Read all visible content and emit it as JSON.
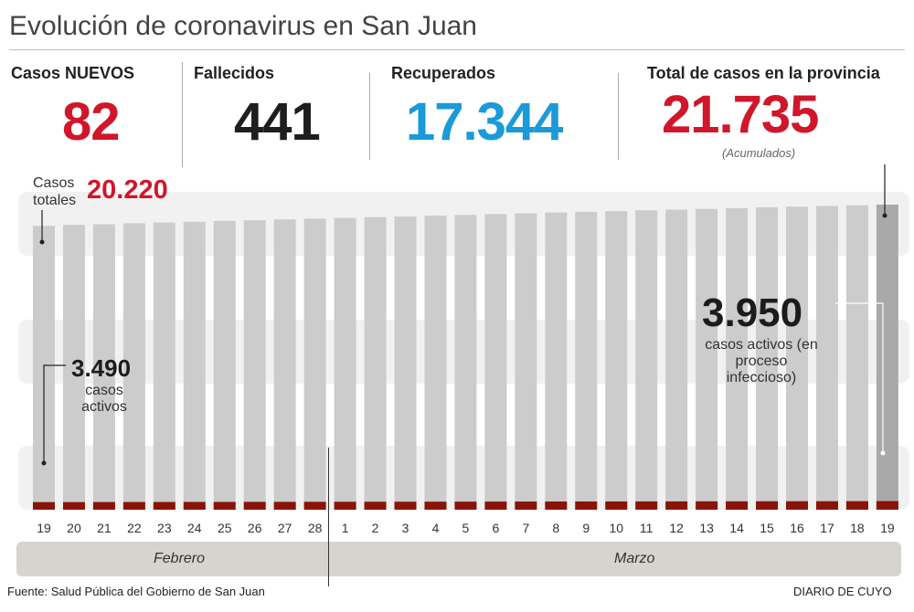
{
  "title": "Evolución de coronavirus en San Juan",
  "stats": [
    {
      "label": "Casos NUEVOS",
      "value": "82",
      "color": "#d0162a"
    },
    {
      "label": "Fallecidos",
      "value": "441",
      "color": "#1e1e1e"
    },
    {
      "label": "Recuperados",
      "value": "17.344",
      "color": "#1a9ad9"
    },
    {
      "label": "Total de casos en la provincia",
      "value": "21.735",
      "color": "#d0162a",
      "note": "(Acumulados)"
    }
  ],
  "annotations": {
    "start_total_label": "Casos totales",
    "start_total_value": "20.220",
    "start_active_value": "3.490",
    "start_active_label": "casos activos",
    "end_active_value": "3.950",
    "end_active_label": "casos activos (en proceso infeccioso)"
  },
  "chart_data": {
    "type": "bar",
    "stacked_overlay": true,
    "categories": [
      "19",
      "20",
      "21",
      "22",
      "23",
      "24",
      "25",
      "26",
      "27",
      "28",
      "1",
      "2",
      "3",
      "4",
      "5",
      "6",
      "7",
      "8",
      "9",
      "10",
      "11",
      "12",
      "13",
      "14",
      "15",
      "16",
      "17",
      "18",
      "19"
    ],
    "months": [
      "Febrero",
      "Marzo"
    ],
    "series": [
      {
        "name": "Casos totales",
        "color": "#cccccc",
        "last_color": "#a9a9a9",
        "values": [
          20220,
          20290,
          20340,
          20400,
          20460,
          20510,
          20570,
          20620,
          20680,
          20730,
          20790,
          20840,
          20890,
          20950,
          21000,
          21060,
          21110,
          21170,
          21220,
          21270,
          21330,
          21380,
          21430,
          21490,
          21540,
          21590,
          21640,
          21690,
          21735
        ]
      },
      {
        "name": "casos activos",
        "color": "#8a1308",
        "values": [
          3490,
          3500,
          3520,
          3530,
          3550,
          3570,
          3580,
          3600,
          3610,
          3630,
          3650,
          3660,
          3680,
          3690,
          3710,
          3730,
          3740,
          3760,
          3770,
          3790,
          3810,
          3820,
          3840,
          3850,
          3870,
          3890,
          3900,
          3920,
          3950
        ]
      }
    ],
    "ylim": [
      0,
      21735
    ],
    "grid": false
  },
  "footer": {
    "source": "Fuente: Salud Pública del Gobierno de San Juan",
    "brand": "DIARIO DE CUYO"
  }
}
